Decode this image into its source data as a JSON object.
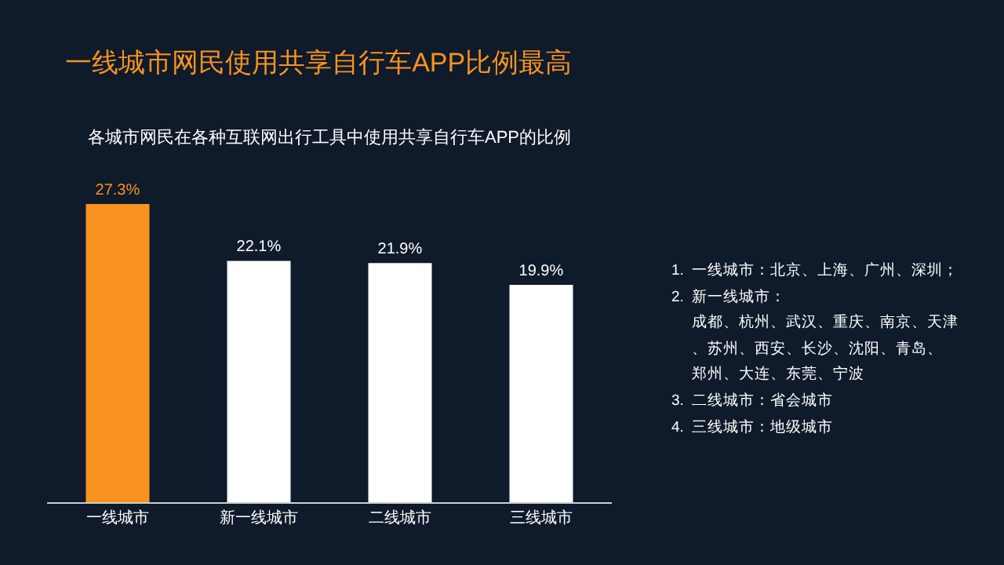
{
  "chart_data": {
    "type": "bar",
    "title": "一线城市网民使用共享自行车APP比例最高",
    "subtitle": "各城市网民在各种互联网出行工具中使用共享自行车APP的比例",
    "categories": [
      "一线城市",
      "新一线城市",
      "二线城市",
      "三线城市"
    ],
    "values": [
      27.3,
      22.1,
      21.9,
      19.9
    ],
    "colors": [
      "#f7931e",
      "#ffffff",
      "#ffffff",
      "#ffffff"
    ],
    "value_labels": [
      "27.3%",
      "22.1%",
      "21.9%",
      "19.9%"
    ],
    "annotations": [
      "1.  一线城市：北京、上海、广州、深圳；",
      "2.  新一线城市：",
      "     成都、杭州、武汉、重庆、南京、天津",
      "     、苏州、西安、长沙、沈阳、青岛、",
      "     郑州、大连、东莞、宁波",
      "3.  二线城市：省会城市",
      "4.  三线城市：地级城市"
    ]
  }
}
